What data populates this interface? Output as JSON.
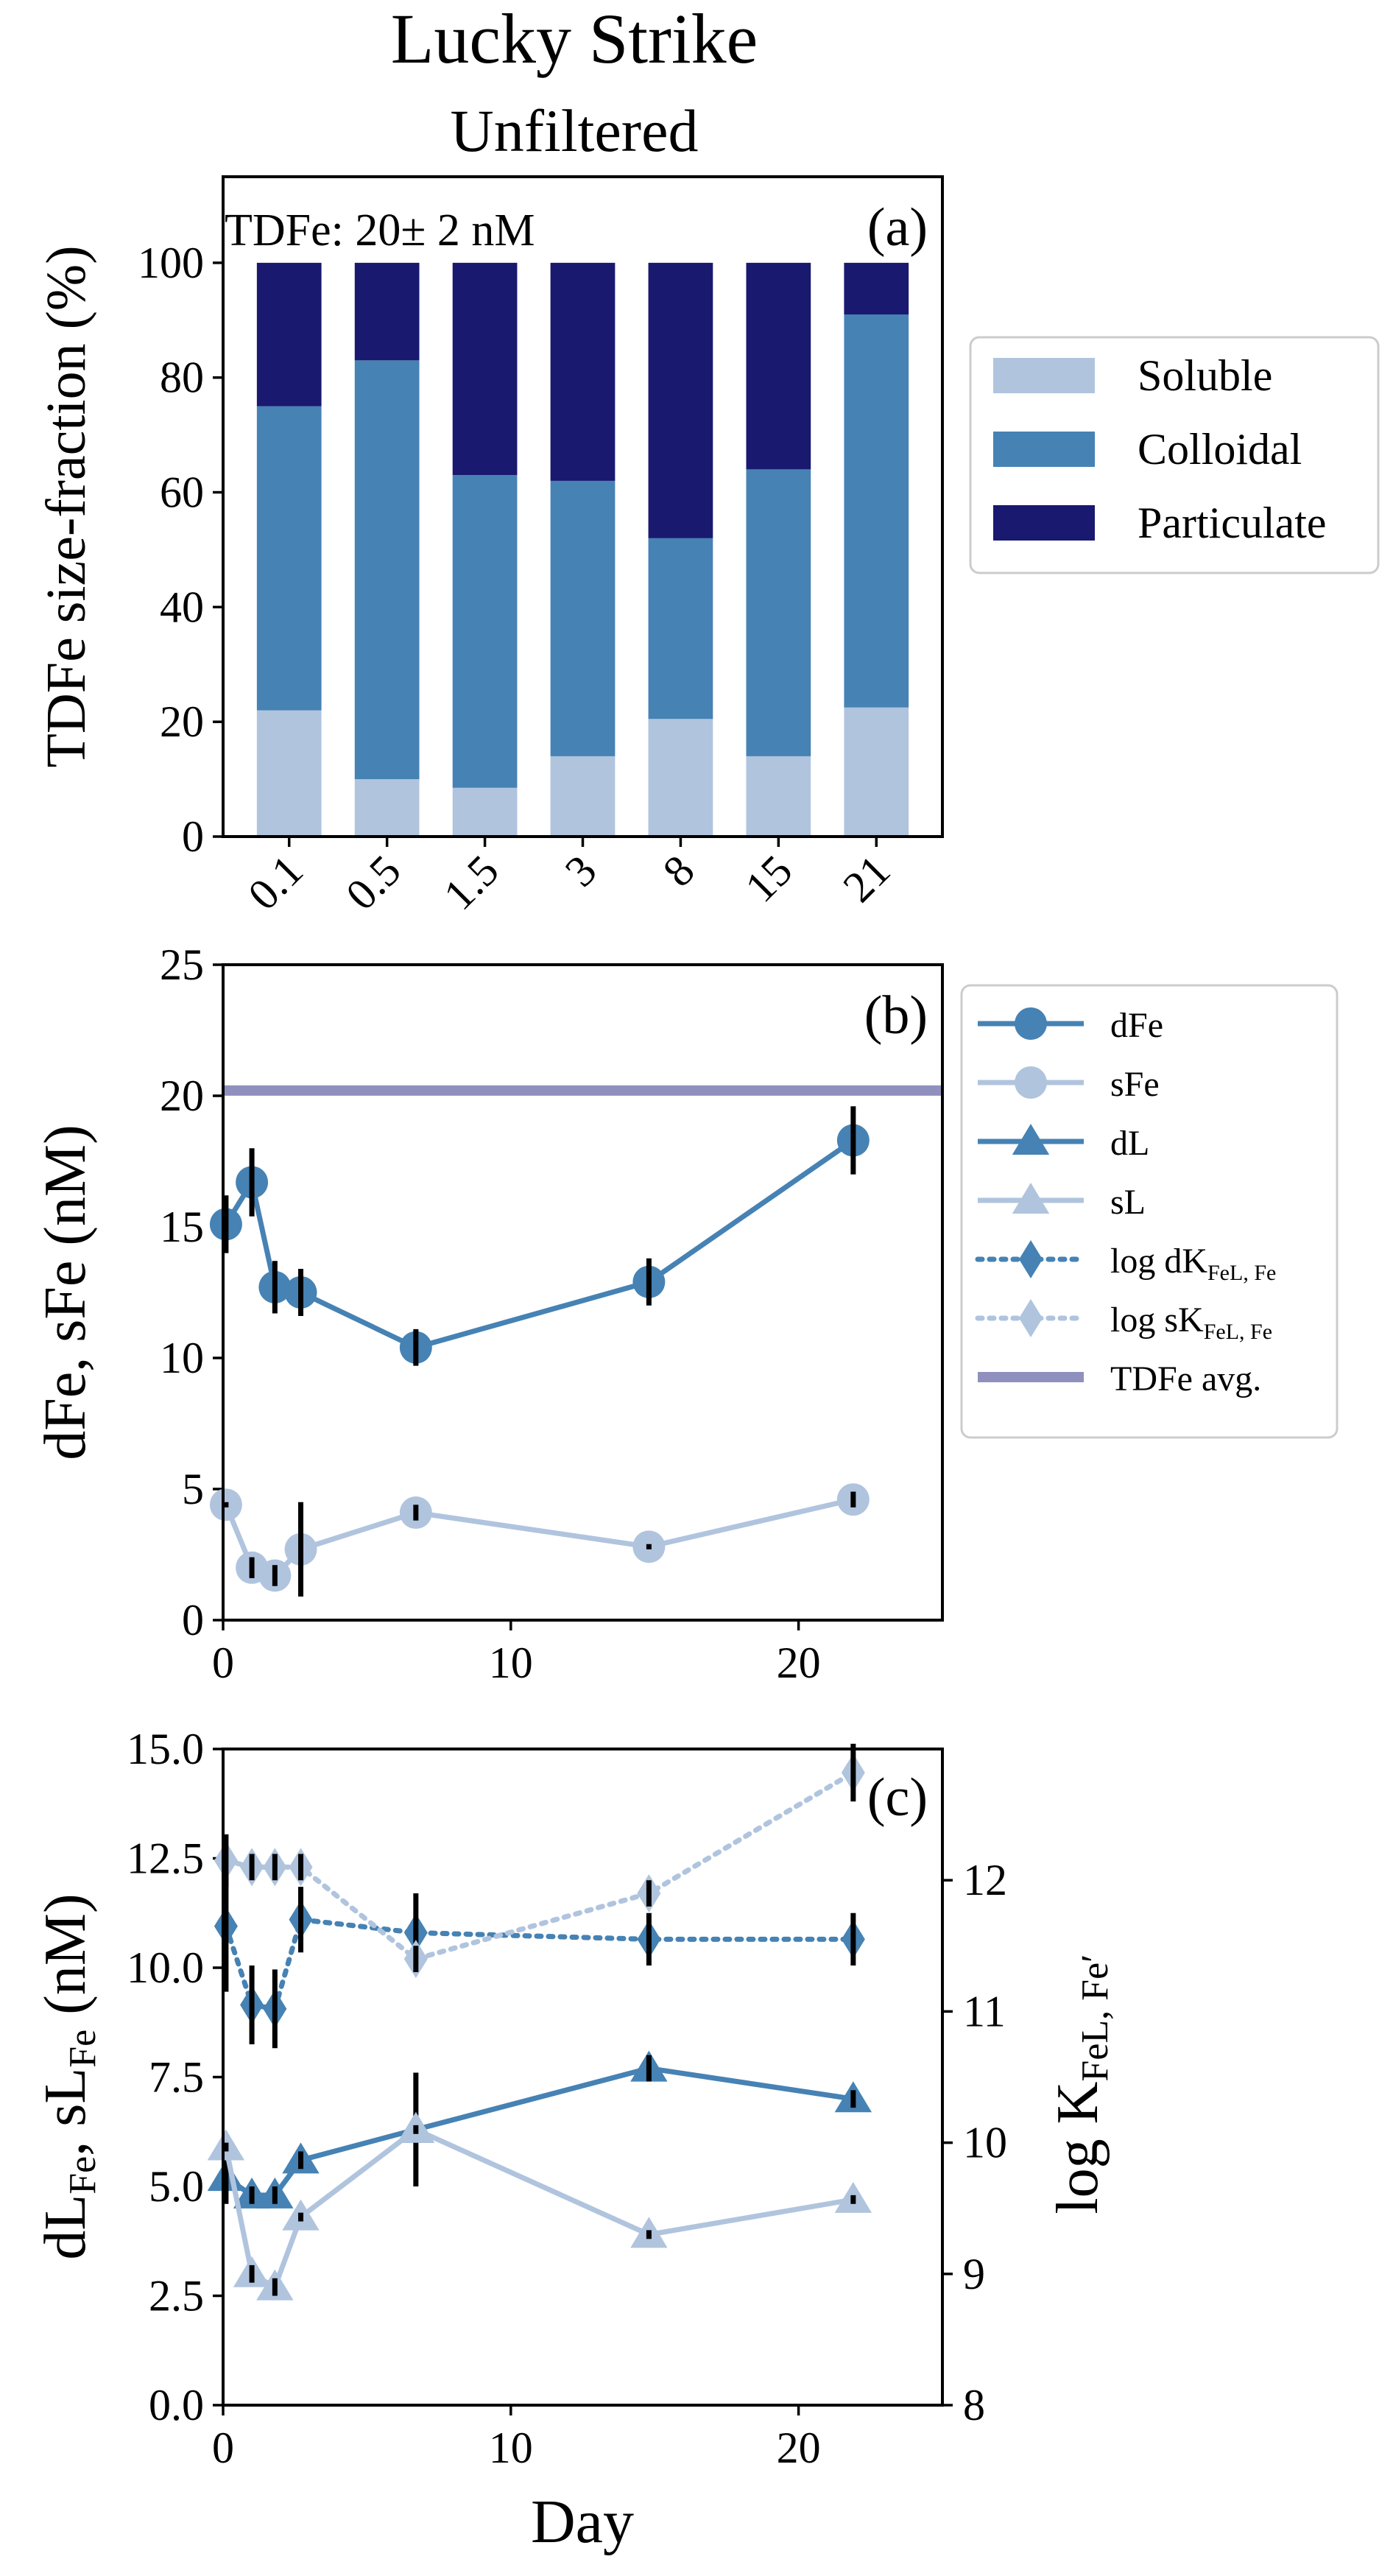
{
  "figure": {
    "title_line1": "Lucky Strike",
    "title_line2": "Unfiltered"
  },
  "colors": {
    "soluble": "#b0c4de",
    "colloidal": "#4682b4",
    "particulate": "#191970",
    "dark_series": "#4682b4",
    "light_series": "#b0c4de",
    "tdfe_line": "#9090be",
    "error_bar": "#000000"
  },
  "chart_data": [
    {
      "id": "a",
      "type": "bar",
      "panel_label": "(a)",
      "annotation": "TDFe: 20± 2 nM",
      "ylabel": "TDFe size-fraction (%)",
      "ylim": [
        0,
        115
      ],
      "yticks": [
        0,
        20,
        40,
        60,
        80,
        100
      ],
      "categories": [
        "0.1",
        "0.5",
        "1.5",
        "3",
        "8",
        "15",
        "21"
      ],
      "stacked": true,
      "series": [
        {
          "name": "Soluble",
          "color_key": "soluble",
          "values": [
            22,
            10,
            8.5,
            14,
            20.5,
            14,
            22.5
          ]
        },
        {
          "name": "Colloidal",
          "color_key": "colloidal",
          "values": [
            53,
            73,
            54.5,
            48,
            31.5,
            50,
            68.5
          ]
        },
        {
          "name": "Particulate",
          "color_key": "particulate",
          "values": [
            25,
            17,
            37,
            38,
            48,
            36,
            9
          ]
        }
      ],
      "legend": [
        "Soluble",
        "Colloidal",
        "Particulate"
      ],
      "legend_position": "outside-right"
    },
    {
      "id": "b",
      "type": "line",
      "panel_label": "(b)",
      "ylabel": "dFe, sFe (nM)",
      "xlim": [
        0,
        25
      ],
      "ylim": [
        0,
        25
      ],
      "xticks": [
        0,
        10,
        20
      ],
      "yticks": [
        0,
        5,
        10,
        15,
        20,
        25
      ],
      "series": [
        {
          "name": "dFe",
          "color_key": "dark_series",
          "marker": "circle",
          "style": "solid",
          "x": [
            0.1,
            1.0,
            1.8,
            2.7,
            6.7,
            14.8,
            21.9
          ],
          "y": [
            15.1,
            16.7,
            12.7,
            12.5,
            10.4,
            12.9,
            18.3
          ],
          "err": [
            1.1,
            1.3,
            1.0,
            0.9,
            0.7,
            0.9,
            1.3
          ]
        },
        {
          "name": "sFe",
          "color_key": "light_series",
          "marker": "circle",
          "style": "solid",
          "x": [
            0.1,
            1.0,
            1.8,
            2.7,
            6.7,
            14.8,
            21.9
          ],
          "y": [
            4.4,
            2.0,
            1.7,
            2.7,
            4.1,
            2.8,
            4.6
          ],
          "err": [
            0.1,
            0.4,
            0.4,
            1.8,
            0.3,
            0.1,
            0.3
          ]
        }
      ],
      "hline": {
        "name": "TDFe avg.",
        "y": 20.2,
        "color_key": "tdfe_line"
      },
      "legend": [
        "dFe",
        "sFe",
        "dL",
        "sL",
        "log dK",
        "log sK",
        "TDFe avg."
      ],
      "legend_position": "outside-right"
    },
    {
      "id": "c",
      "type": "line",
      "panel_label": "(c)",
      "xlabel": "Day",
      "ylabel": "dL, sL",
      "ylabel_right": "log K",
      "xlim": [
        0,
        25
      ],
      "ylim": [
        0,
        15
      ],
      "ylim_right": [
        8,
        13
      ],
      "xticks": [
        0,
        10,
        20
      ],
      "yticks": [
        0.0,
        2.5,
        5.0,
        7.5,
        10.0,
        12.5,
        15.0
      ],
      "yticks_right": [
        8,
        9,
        10,
        11,
        12
      ],
      "series": [
        {
          "name": "dL",
          "axis": "left",
          "color_key": "dark_series",
          "marker": "triangle",
          "style": "solid",
          "x": [
            0.1,
            1.0,
            1.8,
            2.7,
            6.7,
            14.8,
            21.9
          ],
          "y": [
            5.2,
            4.8,
            4.8,
            5.6,
            6.3,
            7.7,
            7.0
          ],
          "err": [
            0.6,
            0.2,
            0.2,
            0.2,
            1.3,
            0.3,
            0.2
          ]
        },
        {
          "name": "sL",
          "axis": "left",
          "color_key": "light_series",
          "marker": "triangle",
          "style": "solid",
          "x": [
            0.1,
            1.0,
            1.8,
            2.7,
            6.7,
            14.8,
            21.9
          ],
          "y": [
            5.9,
            3.0,
            2.7,
            4.3,
            6.3,
            3.9,
            4.7
          ],
          "err": [
            0.1,
            0.2,
            0.2,
            0.1,
            0.1,
            0.1,
            0.1
          ]
        },
        {
          "name": "log dK",
          "axis": "right",
          "color_key": "dark_series",
          "marker": "diamond",
          "style": "dotted",
          "x": [
            0.1,
            1.0,
            1.8,
            2.7,
            6.7,
            14.8,
            21.9
          ],
          "y": [
            11.65,
            11.05,
            11.02,
            11.7,
            11.6,
            11.55,
            11.55
          ],
          "err": [
            0.5,
            0.3,
            0.3,
            0.25,
            0.3,
            0.2,
            0.2
          ]
        },
        {
          "name": "log sK",
          "axis": "right",
          "color_key": "light_series",
          "marker": "diamond",
          "style": "dotted",
          "x": [
            0.1,
            1.0,
            1.8,
            2.7,
            6.7,
            14.8,
            21.9
          ],
          "y": [
            12.15,
            12.1,
            12.1,
            12.1,
            11.4,
            11.9,
            12.82
          ],
          "err": [
            0.2,
            0.1,
            0.1,
            0.1,
            0.1,
            0.1,
            0.22
          ]
        }
      ]
    }
  ]
}
